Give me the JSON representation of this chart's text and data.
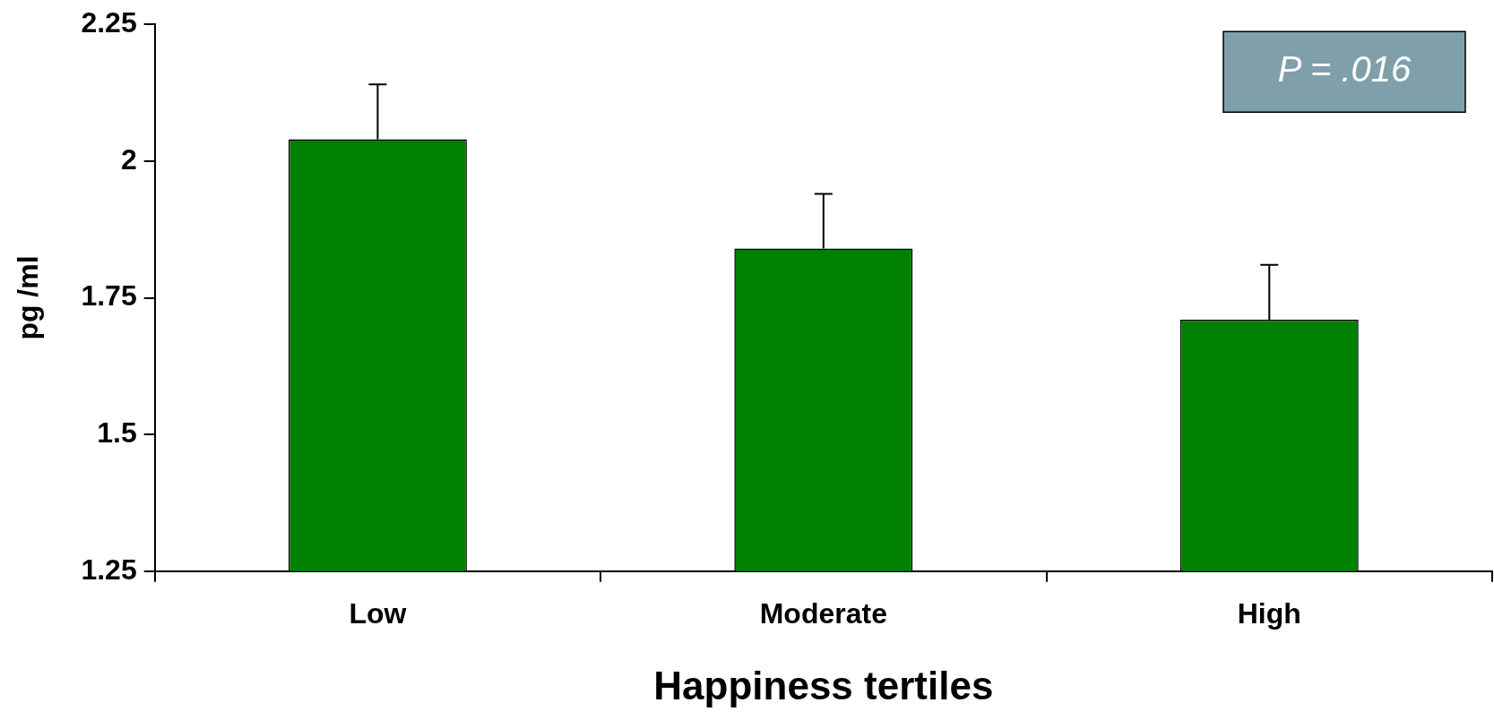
{
  "chart_data": {
    "type": "bar",
    "xlabel": "Happiness tertiles",
    "ylabel": "pg /ml",
    "categories": [
      "Low",
      "Moderate",
      "High"
    ],
    "values": [
      2.04,
      1.84,
      1.71
    ],
    "errors": [
      [
        2.04,
        2.14
      ],
      [
        1.84,
        1.94
      ],
      [
        1.71,
        1.81
      ]
    ],
    "color": "#008000",
    "ylim": [
      1.25,
      2.25
    ],
    "yticks": [
      1.25,
      1.5,
      1.75,
      2,
      2.25
    ],
    "annotations": [
      "P = .016"
    ],
    "grid": false,
    "legend": false
  }
}
